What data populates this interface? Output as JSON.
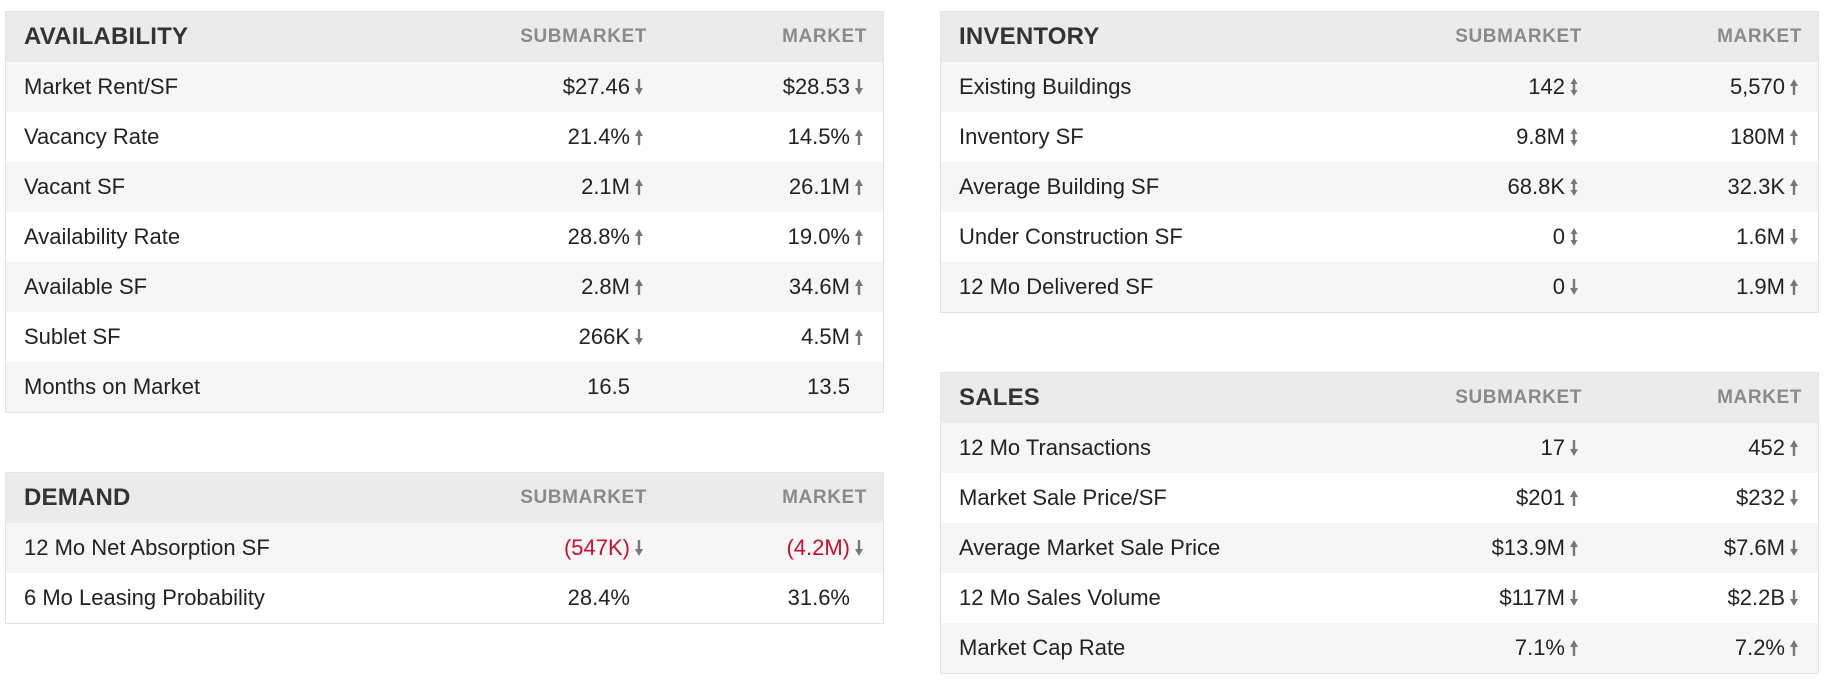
{
  "colors": {
    "header_bg": "#ebebeb",
    "row_alt": "#f6f6f6",
    "negative": "#c8102e",
    "arrow": "#777777"
  },
  "panels": [
    {
      "id": "availability",
      "title": "AVAILABILITY",
      "col1": "SUBMARKET",
      "col2": "MARKET",
      "rows": [
        {
          "label": "Market Rent/SF",
          "sub": "$27.46",
          "sub_arrow": "down",
          "mkt": "$28.53",
          "mkt_arrow": "down"
        },
        {
          "label": "Vacancy Rate",
          "sub": "21.4%",
          "sub_arrow": "up",
          "mkt": "14.5%",
          "mkt_arrow": "up"
        },
        {
          "label": "Vacant SF",
          "sub": "2.1M",
          "sub_arrow": "up",
          "mkt": "26.1M",
          "mkt_arrow": "up"
        },
        {
          "label": "Availability Rate",
          "sub": "28.8%",
          "sub_arrow": "up",
          "mkt": "19.0%",
          "mkt_arrow": "up"
        },
        {
          "label": "Available SF",
          "sub": "2.8M",
          "sub_arrow": "up",
          "mkt": "34.6M",
          "mkt_arrow": "up"
        },
        {
          "label": "Sublet SF",
          "sub": "266K",
          "sub_arrow": "down",
          "mkt": "4.5M",
          "mkt_arrow": "up"
        },
        {
          "label": "Months on Market",
          "sub": "16.5",
          "sub_arrow": "none",
          "mkt": "13.5",
          "mkt_arrow": "none"
        }
      ]
    },
    {
      "id": "demand",
      "title": "DEMAND",
      "col1": "SUBMARKET",
      "col2": "MARKET",
      "rows": [
        {
          "label": "12 Mo Net Absorption SF",
          "sub": "(547K)",
          "sub_arrow": "down",
          "sub_negative": true,
          "mkt": "(4.2M)",
          "mkt_arrow": "down",
          "mkt_negative": true
        },
        {
          "label": "6 Mo Leasing Probability",
          "sub": "28.4%",
          "sub_arrow": "none",
          "mkt": "31.6%",
          "mkt_arrow": "none"
        }
      ]
    },
    {
      "id": "inventory",
      "title": "INVENTORY",
      "col1": "SUBMARKET",
      "col2": "MARKET",
      "rows": [
        {
          "label": "Existing Buildings",
          "sub": "142",
          "sub_arrow": "flat",
          "mkt": "5,570",
          "mkt_arrow": "up"
        },
        {
          "label": "Inventory SF",
          "sub": "9.8M",
          "sub_arrow": "flat",
          "mkt": "180M",
          "mkt_arrow": "up"
        },
        {
          "label": "Average Building SF",
          "sub": "68.8K",
          "sub_arrow": "flat",
          "mkt": "32.3K",
          "mkt_arrow": "up"
        },
        {
          "label": "Under Construction SF",
          "sub": "0",
          "sub_arrow": "flat",
          "mkt": "1.6M",
          "mkt_arrow": "down"
        },
        {
          "label": "12 Mo Delivered SF",
          "sub": "0",
          "sub_arrow": "down",
          "mkt": "1.9M",
          "mkt_arrow": "up"
        }
      ]
    },
    {
      "id": "sales",
      "title": "SALES",
      "col1": "SUBMARKET",
      "col2": "MARKET",
      "rows": [
        {
          "label": "12 Mo Transactions",
          "sub": "17",
          "sub_arrow": "down",
          "mkt": "452",
          "mkt_arrow": "up"
        },
        {
          "label": "Market Sale Price/SF",
          "sub": "$201",
          "sub_arrow": "up",
          "mkt": "$232",
          "mkt_arrow": "down"
        },
        {
          "label": "Average Market Sale Price",
          "sub": "$13.9M",
          "sub_arrow": "up",
          "mkt": "$7.6M",
          "mkt_arrow": "down"
        },
        {
          "label": "12 Mo Sales Volume",
          "sub": "$117M",
          "sub_arrow": "down",
          "mkt": "$2.2B",
          "mkt_arrow": "down"
        },
        {
          "label": "Market Cap Rate",
          "sub": "7.1%",
          "sub_arrow": "up",
          "mkt": "7.2%",
          "mkt_arrow": "up"
        }
      ]
    }
  ]
}
